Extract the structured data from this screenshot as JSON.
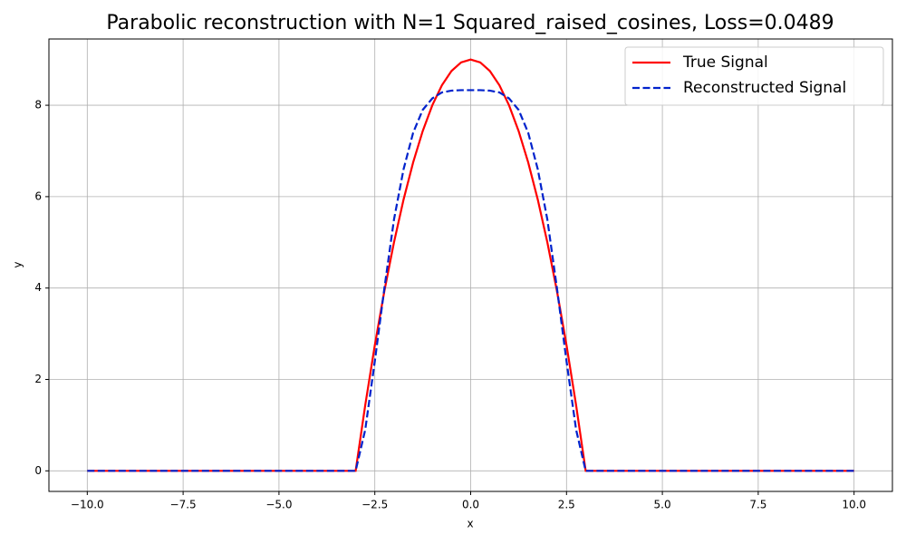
{
  "chart_data": {
    "type": "line",
    "title": "Parabolic reconstruction with N=1 Squared_raised_cosines, Loss=0.0489",
    "x_label": "x",
    "y_label": "y",
    "x": [
      -10,
      -3.25,
      -3,
      -2.75,
      -2.5,
      -2.25,
      -2,
      -1.75,
      -1.5,
      -1.25,
      -1,
      -0.75,
      -0.5,
      -0.25,
      0,
      0.25,
      0.5,
      0.75,
      1,
      1.25,
      1.5,
      1.75,
      2,
      2.25,
      2.5,
      2.75,
      3,
      3.25,
      10
    ],
    "series": [
      {
        "name": "True Signal",
        "color": "#ff0000",
        "linestyle": "solid",
        "values": [
          0,
          0,
          0,
          1.4375,
          2.75,
          3.9375,
          5,
          5.9375,
          6.75,
          7.4375,
          8,
          8.4375,
          8.75,
          8.9375,
          9,
          8.9375,
          8.75,
          8.4375,
          8,
          7.4375,
          6.75,
          5.9375,
          5,
          3.9375,
          2.75,
          1.4375,
          0,
          0,
          0
        ]
      },
      {
        "name": "Reconstructed Signal",
        "color": "#0022cc",
        "linestyle": "dashed",
        "values": [
          0,
          0,
          0,
          0.9,
          2.4,
          4.0,
          5.5,
          6.6,
          7.4,
          7.9,
          8.15,
          8.28,
          8.32,
          8.33,
          8.33,
          8.33,
          8.32,
          8.28,
          8.15,
          7.9,
          7.4,
          6.6,
          5.5,
          4.0,
          2.4,
          0.9,
          0,
          0,
          0
        ]
      }
    ],
    "xlim": [
      -11,
      11
    ],
    "ylim": [
      -0.45,
      9.45
    ],
    "xticks": [
      {
        "value": -10,
        "label": "−10.0"
      },
      {
        "value": -7.5,
        "label": "−7.5"
      },
      {
        "value": -5,
        "label": "−5.0"
      },
      {
        "value": -2.5,
        "label": "−2.5"
      },
      {
        "value": 0,
        "label": "0.0"
      },
      {
        "value": 2.5,
        "label": "2.5"
      },
      {
        "value": 5,
        "label": "5.0"
      },
      {
        "value": 7.5,
        "label": "7.5"
      },
      {
        "value": 10,
        "label": "10.0"
      }
    ],
    "yticks": [
      0,
      2,
      4,
      6,
      8
    ],
    "grid": true,
    "legend_position": "upper-right"
  }
}
